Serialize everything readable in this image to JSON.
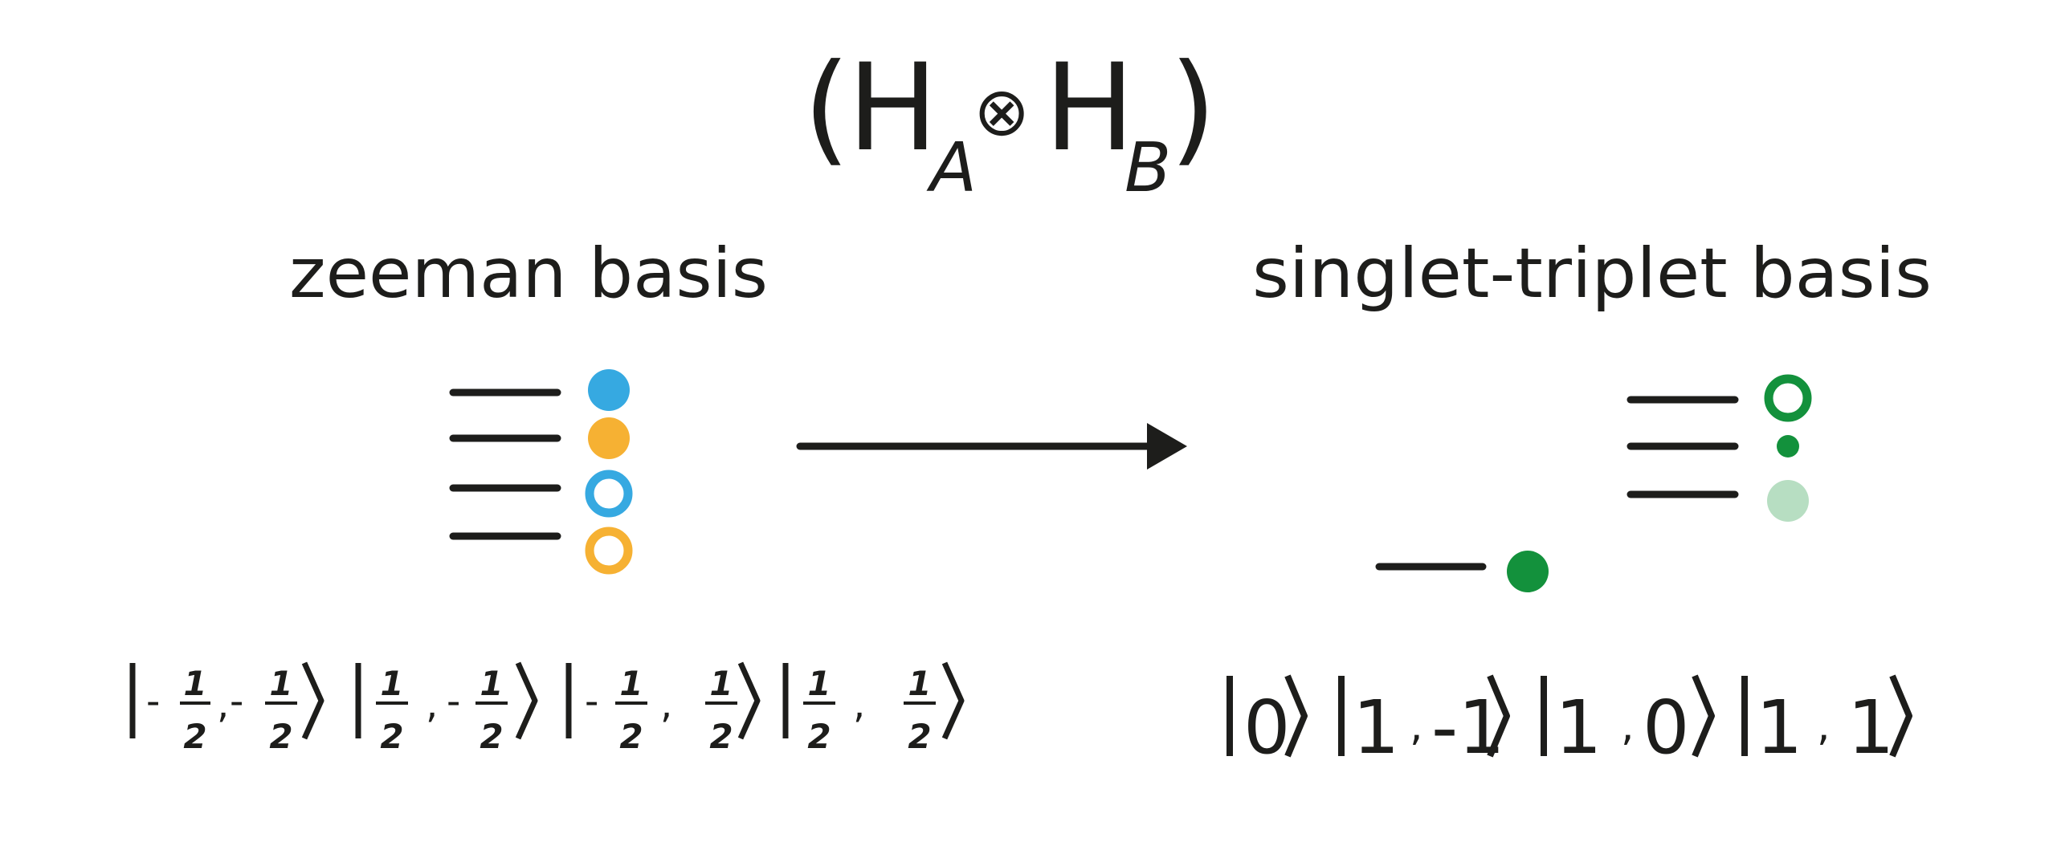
{
  "title": {
    "open_paren": "(",
    "h_a": "H",
    "sub_a": "A",
    "otimes": "⊗",
    "h_b": "H",
    "sub_b": "B",
    "close_paren": ")"
  },
  "left": {
    "heading": "zeeman basis",
    "levels": [
      {
        "marker": "filled",
        "color": "#36a9e1"
      },
      {
        "marker": "filled",
        "color": "#f6b133"
      },
      {
        "marker": "ring",
        "color": "#36a9e1"
      },
      {
        "marker": "ring",
        "color": "#f6b133"
      }
    ],
    "kets": [
      {
        "a_sign": "-",
        "a_num": "1",
        "a_den": "2",
        "sep": ",",
        "b_sign": "-",
        "b_num": "1",
        "b_den": "2"
      },
      {
        "a_sign": "",
        "a_num": "1",
        "a_den": "2",
        "sep": ",",
        "b_sign": "-",
        "b_num": "1",
        "b_den": "2"
      },
      {
        "a_sign": "-",
        "a_num": "1",
        "a_den": "2",
        "sep": ",",
        "b_sign": "",
        "b_num": "1",
        "b_den": "2"
      },
      {
        "a_sign": "",
        "a_num": "1",
        "a_den": "2",
        "sep": ",",
        "b_sign": "",
        "b_num": "1",
        "b_den": "2"
      }
    ]
  },
  "right": {
    "heading": "singlet-triplet basis",
    "levels": [
      {
        "marker": "ring",
        "color": "#13913c"
      },
      {
        "marker": "small-dot",
        "color": "#13913c"
      },
      {
        "marker": "filled",
        "color": "#b7dec2"
      },
      {
        "marker": "filled",
        "color": "#13913c"
      }
    ],
    "kets": [
      {
        "text": "0"
      },
      {
        "a": "1",
        "sep": ",",
        "b": "-1"
      },
      {
        "a": "1",
        "sep": ",",
        "b": "0"
      },
      {
        "a": "1",
        "sep": ",",
        "b": "1"
      }
    ]
  },
  "colors": {
    "ink": "#1d1d1b",
    "blue": "#36a9e1",
    "orange": "#f6b133",
    "green": "#13913c",
    "light_green": "#b7dec2"
  },
  "icons": [
    "arrow-right-icon"
  ]
}
